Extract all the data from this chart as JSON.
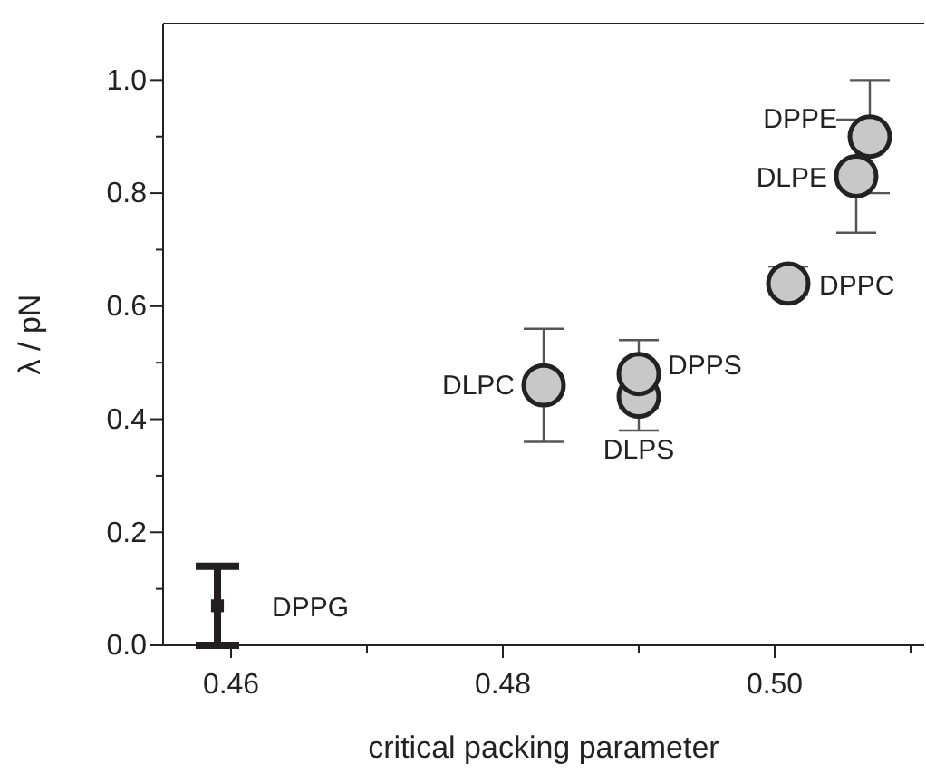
{
  "chart_data": {
    "type": "scatter",
    "xlabel": "critical packing parameter",
    "ylabel": "λ / pN",
    "xlim": [
      0.455,
      0.511
    ],
    "xticks": [
      0.46,
      {
        "value": 0.47,
        "label": null
      },
      0.48,
      {
        "value": 0.49,
        "label": null
      },
      "0.50",
      {
        "value": 0.51,
        "label": null
      }
    ],
    "ylim": [
      0,
      1.1
    ],
    "yticks": [
      "0.0",
      {
        "value": 0.1,
        "label": null
      },
      0.2,
      {
        "value": 0.3,
        "label": null
      },
      0.4,
      {
        "value": 0.5,
        "label": null
      },
      0.6,
      {
        "value": 0.7,
        "label": null
      },
      0.8,
      {
        "value": 0.9,
        "label": null
      },
      "1.0"
    ],
    "marker": "circle",
    "series": [
      {
        "color": "#c8c8c8",
        "x": [
          0.483,
          0.49,
          0.49,
          0.501,
          0.506,
          0.507
        ],
        "values": [
          0.46,
          0.44,
          0.48,
          0.64,
          0.83,
          0.9
        ],
        "errors": [
          [
            0.36,
            0.56
          ],
          [
            0.38,
            0.44
          ],
          [
            0.42,
            0.54
          ],
          [
            0.62,
            0.67
          ],
          [
            0.73,
            0.93
          ],
          [
            0.8,
            1.0
          ]
        ]
      },
      {
        "marker": "square",
        "color": "#231f20",
        "x": [
          0.459
        ],
        "values": [
          0.07
        ],
        "errors": [
          [
            0.0,
            0.14
          ]
        ]
      }
    ],
    "annotations": [
      {
        "text": "DLPC",
        "x": 0.483,
        "y": 0.46
      },
      {
        "text": "DLPS",
        "x": 0.49,
        "y": 0.44
      },
      {
        "text": "DPPS",
        "x": 0.49,
        "y": 0.48
      },
      {
        "text": "DPPC",
        "x": 0.501,
        "y": 0.64
      },
      {
        "text": "DLPE",
        "x": 0.506,
        "y": 0.83
      },
      {
        "text": "DPPE",
        "x": 0.507,
        "y": 0.9
      },
      {
        "text": "DPPG",
        "x": 0.459,
        "y": 0.07
      }
    ]
  }
}
